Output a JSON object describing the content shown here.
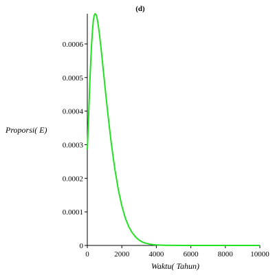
{
  "chart_data": {
    "type": "line",
    "title": "(d)",
    "xlabel": "Waktu( Tahun)",
    "ylabel": "Proporsi( E)",
    "xlim": [
      0,
      10000
    ],
    "ylim": [
      0,
      0.00069
    ],
    "x_ticks": [
      0,
      2000,
      4000,
      6000,
      8000,
      10000
    ],
    "x_tick_labels": [
      "0",
      "2000",
      "4000",
      "6000",
      "8000",
      "10000"
    ],
    "y_ticks": [
      0,
      0.0001,
      0.0002,
      0.0003,
      0.0004,
      0.0005,
      0.0006
    ],
    "y_tick_labels": [
      "0",
      "0.0001",
      "0.0002",
      "0.0003",
      "0.0004",
      "0.0005",
      "0.0006"
    ],
    "grid": false,
    "legend": "none",
    "series": [
      {
        "color": "#22e022",
        "x": [
          0,
          50,
          100,
          150,
          200,
          250,
          300,
          350,
          400,
          450,
          500,
          550,
          600,
          650,
          700,
          800,
          900,
          1000,
          1100,
          1200,
          1300,
          1400,
          1500,
          1600,
          1800,
          2000,
          2200,
          2400,
          2600,
          2800,
          3000,
          3200,
          3400,
          3600,
          3800,
          4000,
          4200,
          4500,
          5000,
          5500,
          6000,
          7000,
          8000,
          9000,
          10000
        ],
        "values": [
          0.000285,
          0.00035,
          0.00042,
          0.00049,
          0.00055,
          0.0006,
          0.00064,
          0.00067,
          0.000685,
          0.00069,
          0.000688,
          0.00068,
          0.000667,
          0.00065,
          0.00063,
          0.000585,
          0.000535,
          0.000485,
          0.000435,
          0.000388,
          0.000343,
          0.0003,
          0.000262,
          0.000226,
          0.000165,
          0.000118,
          8.2e-05,
          5.6e-05,
          3.8e-05,
          2.5e-05,
          1.6e-05,
          1e-05,
          6.5e-06,
          4e-06,
          2.5e-06,
          1.5e-06,
          1e-06,
          5e-07,
          2e-07,
          8e-08,
          3e-08,
          1e-08,
          0,
          0,
          0
        ]
      }
    ]
  }
}
